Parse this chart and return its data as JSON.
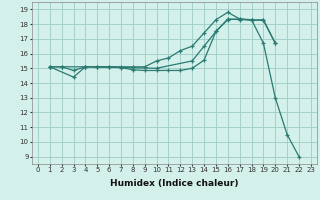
{
  "xlabel": "Humidex (Indice chaleur)",
  "xlim": [
    -0.5,
    23.5
  ],
  "ylim": [
    8.5,
    19.5
  ],
  "xticks": [
    0,
    1,
    2,
    3,
    4,
    5,
    6,
    7,
    8,
    9,
    10,
    11,
    12,
    13,
    14,
    15,
    16,
    17,
    18,
    19,
    20,
    21,
    22,
    23
  ],
  "yticks": [
    9,
    10,
    11,
    12,
    13,
    14,
    15,
    16,
    17,
    18,
    19
  ],
  "bg_color": "#d4f0eb",
  "grid_color": "#9eccc5",
  "line_color": "#2a7a72",
  "lines": [
    [
      [
        1,
        15.1
      ],
      [
        2,
        15.1
      ],
      [
        3,
        14.85
      ],
      [
        4,
        15.1
      ],
      [
        5,
        15.1
      ],
      [
        6,
        15.1
      ],
      [
        7,
        15.05
      ],
      [
        8,
        14.9
      ],
      [
        9,
        14.85
      ],
      [
        10,
        14.85
      ],
      [
        11,
        14.85
      ],
      [
        12,
        14.85
      ],
      [
        13,
        15.0
      ],
      [
        14,
        15.55
      ],
      [
        15,
        17.5
      ],
      [
        16,
        18.35
      ],
      [
        17,
        18.3
      ],
      [
        18,
        18.3
      ],
      [
        19,
        16.7
      ],
      [
        20,
        13.0
      ],
      [
        21,
        10.5
      ],
      [
        22,
        9.0
      ]
    ],
    [
      [
        1,
        15.1
      ],
      [
        2,
        15.1
      ],
      [
        4,
        15.1
      ],
      [
        5,
        15.1
      ],
      [
        6,
        15.1
      ],
      [
        7,
        15.1
      ],
      [
        8,
        15.1
      ],
      [
        9,
        15.1
      ],
      [
        10,
        15.5
      ],
      [
        11,
        15.7
      ],
      [
        12,
        16.2
      ],
      [
        13,
        16.5
      ],
      [
        14,
        17.4
      ],
      [
        15,
        18.3
      ],
      [
        16,
        18.8
      ],
      [
        17,
        18.35
      ],
      [
        18,
        18.3
      ],
      [
        19,
        18.25
      ],
      [
        20,
        16.7
      ]
    ],
    [
      [
        1,
        15.1
      ],
      [
        3,
        14.4
      ],
      [
        4,
        15.1
      ],
      [
        10,
        15.0
      ],
      [
        13,
        15.5
      ],
      [
        14,
        16.5
      ],
      [
        15,
        17.5
      ],
      [
        16,
        18.3
      ],
      [
        17,
        18.35
      ],
      [
        18,
        18.25
      ],
      [
        19,
        18.3
      ],
      [
        20,
        16.7
      ]
    ]
  ],
  "marker_size": 3,
  "line_width": 0.9,
  "xlabel_fontsize": 6.5,
  "tick_fontsize": 5.0
}
